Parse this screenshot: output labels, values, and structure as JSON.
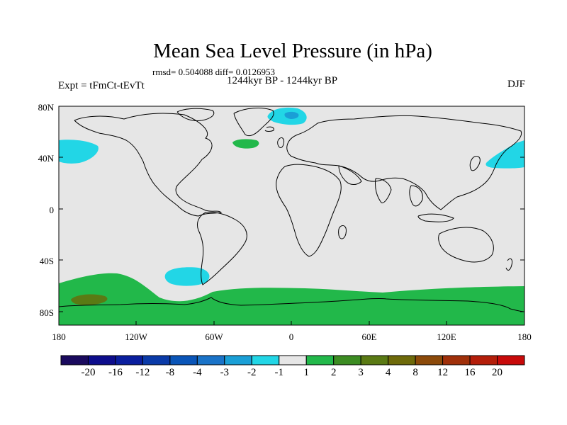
{
  "title": "Mean Sea Level Pressure (in hPa)",
  "stats_text": "rmsd= 0.504088 diff= 0.0126953",
  "period_text": "1244kyr BP - 1244kyr BP",
  "expt_text": "Expt = tFmCt-tEvTt",
  "season": "DJF",
  "lat_labels": [
    "80N",
    "40N",
    "0",
    "40S",
    "80S"
  ],
  "lon_labels": [
    "180",
    "120W",
    "60W",
    "0",
    "60E",
    "120E",
    "180"
  ],
  "colorbar": {
    "labels": [
      "-20",
      "-16",
      "-12",
      "-8",
      "-4",
      "-3",
      "-2",
      "-1",
      "1",
      "2",
      "3",
      "4",
      "8",
      "12",
      "16",
      "20"
    ],
    "colors": [
      "#1a0a5e",
      "#0d0d8c",
      "#0a1e9e",
      "#0a3aa8",
      "#0a55b8",
      "#1a73c8",
      "#1a9fd6",
      "#22d6e6",
      "#e6e6e6",
      "#22b84a",
      "#3c8c22",
      "#5a7a14",
      "#6e6a0a",
      "#8c4a0a",
      "#a0300a",
      "#b41e0a",
      "#c80a0a"
    ]
  },
  "colors": {
    "background": "#e6e6e6",
    "negative_1_2": "#22d6e6",
    "negative_2_3": "#1a9fd6",
    "positive_1_2": "#22b84a",
    "positive_3_4": "#5a7a14"
  }
}
